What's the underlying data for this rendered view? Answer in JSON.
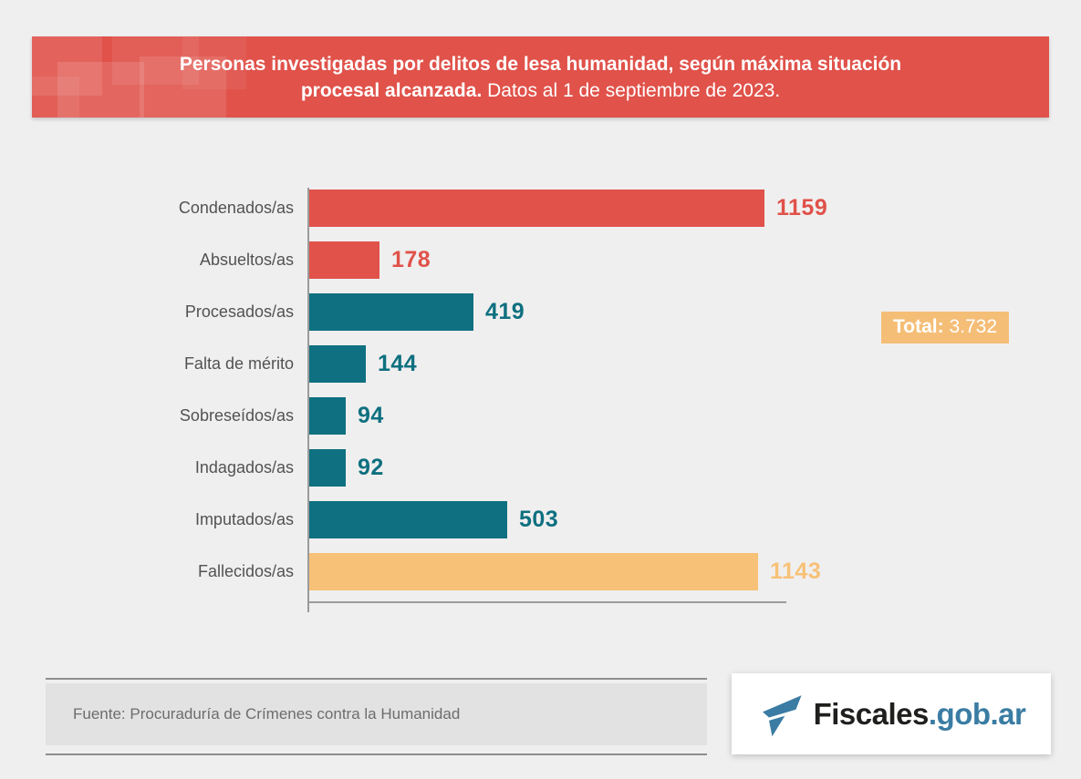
{
  "colors": {
    "red": "#e0524a",
    "teal": "#0e7080",
    "orange": "#f7c178",
    "background": "#f0efef",
    "badge_orange": "#f5be77",
    "logo_blue": "#3a7ca3"
  },
  "header": {
    "line1_bold": "Personas investigadas por delitos de lesa humanidad, según máxima situación",
    "line2_bold": "procesal alcanzada.",
    "line2_regular": " Datos al 1 de septiembre de 2023."
  },
  "chart_data": {
    "type": "bar",
    "orientation": "horizontal",
    "title": "Personas investigadas por delitos de lesa humanidad, según máxima situación procesal alcanzada. Datos al 1 de septiembre de 2023.",
    "categories": [
      "Condenados/as",
      "Absueltos/as",
      "Procesados/as",
      "Falta de mérito",
      "Sobreseídos/as",
      "Indagados/as",
      "Imputados/as",
      "Fallecidos/as"
    ],
    "values": [
      1159,
      178,
      419,
      144,
      94,
      92,
      503,
      1143
    ],
    "bar_colors": [
      "#e0524a",
      "#e0524a",
      "#0e7080",
      "#0e7080",
      "#0e7080",
      "#0e7080",
      "#0e7080",
      "#f7c178"
    ],
    "xlabel": "",
    "ylabel": "",
    "xlim": [
      0,
      1200
    ],
    "grid": false,
    "legend": false,
    "total": "3.732"
  },
  "total_badge": {
    "label": "Total:",
    "value": " 3.732"
  },
  "footer": {
    "source": "Fuente: Procuraduría de Crímenes contra la Humanidad"
  },
  "logo": {
    "text_dark": "Fiscales",
    "text_accent": ".gob.ar"
  }
}
